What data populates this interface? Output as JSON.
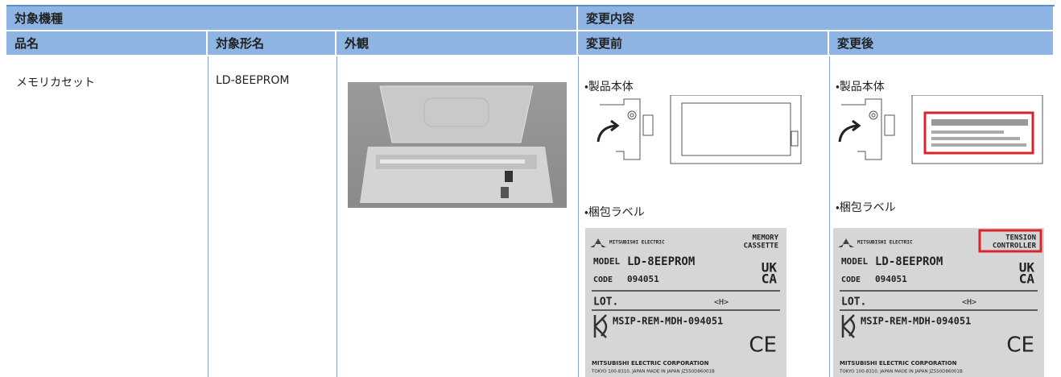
{
  "header": {
    "group": [
      "対象機種",
      "変更内容"
    ],
    "columns": [
      "品名",
      "対象形名",
      "外観",
      "変更前",
      "変更後"
    ]
  },
  "rows": [
    {
      "product": "メモリカセット",
      "model": "LD-8EEPROM",
      "before": {
        "body_caption": "・製品本体",
        "package_caption": "・梱包ラベル",
        "package_label": {
          "maker": "MITSUBISHI ELECTRIC",
          "product": [
            "MEMORY",
            "CASSETTE"
          ],
          "model_key": "MODEL",
          "model": "LD-8EEPROM",
          "code_key": "CODE",
          "code": "094051",
          "lot_key": "LOT.",
          "lot_mark": "<H>",
          "ukca": [
            "UK",
            "CA"
          ],
          "kc": "MSIP-REM-MDH-094051",
          "ce": "CE",
          "corp": "MITSUBISHI ELECTRIC CORPORATION",
          "address": "TOKYO 100-8310, JAPAN MADE IN JAPAN JZ550D86001B"
        }
      },
      "after": {
        "body_caption": "・製品本体",
        "package_caption": "・梱包ラベル",
        "package_label": {
          "maker": "MITSUBISHI ELECTRIC",
          "product": [
            "TENSION",
            "CONTROLLER"
          ],
          "model_key": "MODEL",
          "model": "LD-8EEPROM",
          "code_key": "CODE",
          "code": "094051",
          "lot_key": "LOT.",
          "lot_mark": "<H>",
          "ukca": [
            "UK",
            "CA"
          ],
          "kc": "MSIP-REM-MDH-094051",
          "ce": "CE",
          "corp": "MITSUBISHI ELECTRIC CORPORATION",
          "address": "TOKYO 100-8310, JAPAN MADE IN JAPAN JZ550D86001B"
        }
      }
    }
  ]
}
